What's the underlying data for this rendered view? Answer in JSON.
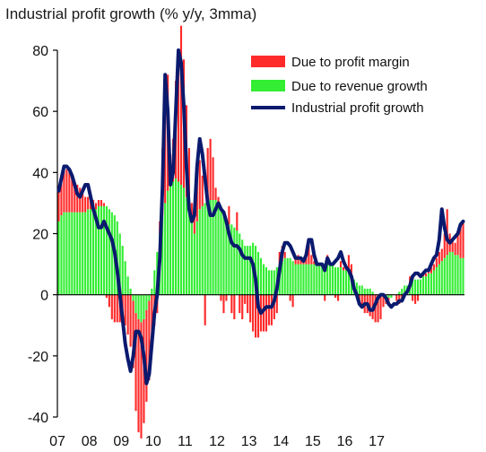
{
  "chart_data": {
    "type": "bar",
    "title": "Industrial profit growth  (% y/y, 3mma)",
    "xlabel": "",
    "ylabel": "",
    "ylim": [
      -40,
      80
    ],
    "yticks": [
      80,
      60,
      40,
      20,
      0,
      -20,
      -40
    ],
    "x_start": "2007-01",
    "xtick_labels": [
      "07",
      "08",
      "09",
      "10",
      "11",
      "12",
      "13",
      "14",
      "15",
      "16",
      "17"
    ],
    "legend_position": "top-right",
    "grid": false,
    "colors": {
      "Due to profit margin": "#ff2a2a",
      "Due to revenue growth": "#33ee33",
      "Industrial profit growth": "#0a1a6e"
    },
    "series": [
      {
        "name": "Due to profit margin",
        "kind": "stacked-bar",
        "values": [
          10,
          12,
          14,
          14,
          13,
          12,
          10,
          9,
          8,
          6,
          5,
          4,
          4,
          3,
          2,
          2,
          2,
          1,
          -1,
          -4,
          -8,
          -9,
          -9,
          -9,
          -8,
          -10,
          -13,
          -17,
          -22,
          -32,
          -37,
          -38,
          -34,
          -30,
          -26,
          -18,
          -10,
          -6,
          4,
          22,
          36,
          38,
          10,
          14,
          32,
          40,
          52,
          42,
          30,
          20,
          6,
          10,
          20,
          16,
          10,
          -10,
          18,
          20,
          14,
          4,
          2,
          -2,
          -6,
          -2,
          6,
          -6,
          -8,
          6,
          -6,
          -8,
          -3,
          -6,
          -9,
          -12,
          -14,
          -14,
          -12,
          -12,
          -12,
          -10,
          -10,
          -8,
          -6,
          4,
          5,
          2,
          0,
          -2,
          -4,
          2,
          3,
          2,
          1,
          4,
          8,
          3,
          1,
          0,
          0,
          0,
          -2,
          3,
          0,
          0,
          -1,
          -2,
          2,
          1,
          1,
          6,
          4,
          0,
          -1,
          -2,
          -4,
          -6,
          -6,
          -7,
          -8,
          -9,
          -9,
          -8,
          -4,
          -2,
          -1,
          0,
          0,
          -2,
          -3,
          -2,
          0,
          0,
          2,
          -2,
          -3,
          -2,
          0,
          1,
          1,
          1,
          2,
          2,
          3,
          4,
          4,
          8,
          15,
          6,
          4,
          4,
          8,
          10,
          12,
          13,
          14
        ]
      },
      {
        "name": "Due to revenue growth",
        "kind": "stacked-bar",
        "values": [
          24,
          26,
          27,
          27,
          27,
          27,
          27,
          27,
          27,
          27,
          27,
          28,
          28,
          28,
          28,
          29,
          29,
          29,
          29,
          28,
          27,
          26,
          24,
          20,
          16,
          11,
          6,
          2,
          -2,
          -6,
          -8,
          -9,
          -8,
          -5,
          -2,
          2,
          8,
          14,
          20,
          26,
          30,
          34,
          36,
          37,
          38,
          37,
          36,
          35,
          32,
          28,
          24,
          20,
          24,
          28,
          29,
          30,
          30,
          31,
          31,
          31,
          30,
          29,
          27,
          25,
          23,
          23,
          22,
          21,
          20,
          18,
          16,
          16,
          16,
          17,
          16,
          14,
          12,
          10,
          9,
          8,
          8,
          8,
          9,
          10,
          11,
          12,
          12,
          12,
          11,
          10,
          10,
          10,
          10,
          10,
          10,
          10,
          10,
          10,
          10,
          10,
          10,
          10,
          10,
          10,
          9,
          9,
          9,
          8,
          8,
          7,
          6,
          5,
          4,
          3,
          3,
          2,
          2,
          2,
          1,
          0,
          0,
          0,
          0,
          -1,
          -1,
          -1,
          0,
          0,
          1,
          2,
          3,
          3,
          4,
          5,
          5,
          5,
          5,
          6,
          6,
          7,
          7,
          8,
          9,
          10,
          11,
          12,
          13,
          14,
          14,
          13,
          13,
          12,
          12,
          11,
          10
        ]
      },
      {
        "name": "Industrial profit growth",
        "kind": "line",
        "values": [
          34,
          38,
          42,
          42,
          41,
          39,
          36,
          33,
          32,
          34,
          36,
          36,
          32,
          28,
          25,
          22,
          22,
          24,
          22,
          20,
          18,
          14,
          8,
          0,
          -8,
          -16,
          -21,
          -25,
          -20,
          -12,
          -12,
          -14,
          -20,
          -29,
          -26,
          -16,
          -6,
          0,
          12,
          35,
          72,
          60,
          36,
          40,
          60,
          80,
          76,
          62,
          42,
          28,
          24,
          26,
          42,
          51,
          46,
          38,
          30,
          26,
          26,
          28,
          30,
          28,
          27,
          24,
          20,
          17,
          16,
          16,
          15,
          13,
          12,
          12,
          12,
          10,
          5,
          -4,
          -6,
          -5,
          -4,
          -4,
          -4,
          -2,
          2,
          8,
          14,
          17,
          17,
          16,
          14,
          12,
          12,
          12,
          11,
          13,
          18,
          18,
          13,
          10,
          10,
          10,
          8,
          12,
          10,
          10,
          11,
          12,
          14,
          11,
          9,
          8,
          6,
          2,
          0,
          -3,
          -4,
          -3,
          -3,
          -5,
          -5,
          -3,
          -1,
          0,
          0,
          -1,
          -3,
          -4,
          -3,
          -3,
          -2,
          -2,
          0,
          1,
          3,
          6,
          7,
          7,
          6,
          7,
          8,
          8,
          10,
          12,
          13,
          18,
          28,
          22,
          18,
          17,
          18,
          19,
          20,
          23,
          24
        ]
      }
    ]
  }
}
